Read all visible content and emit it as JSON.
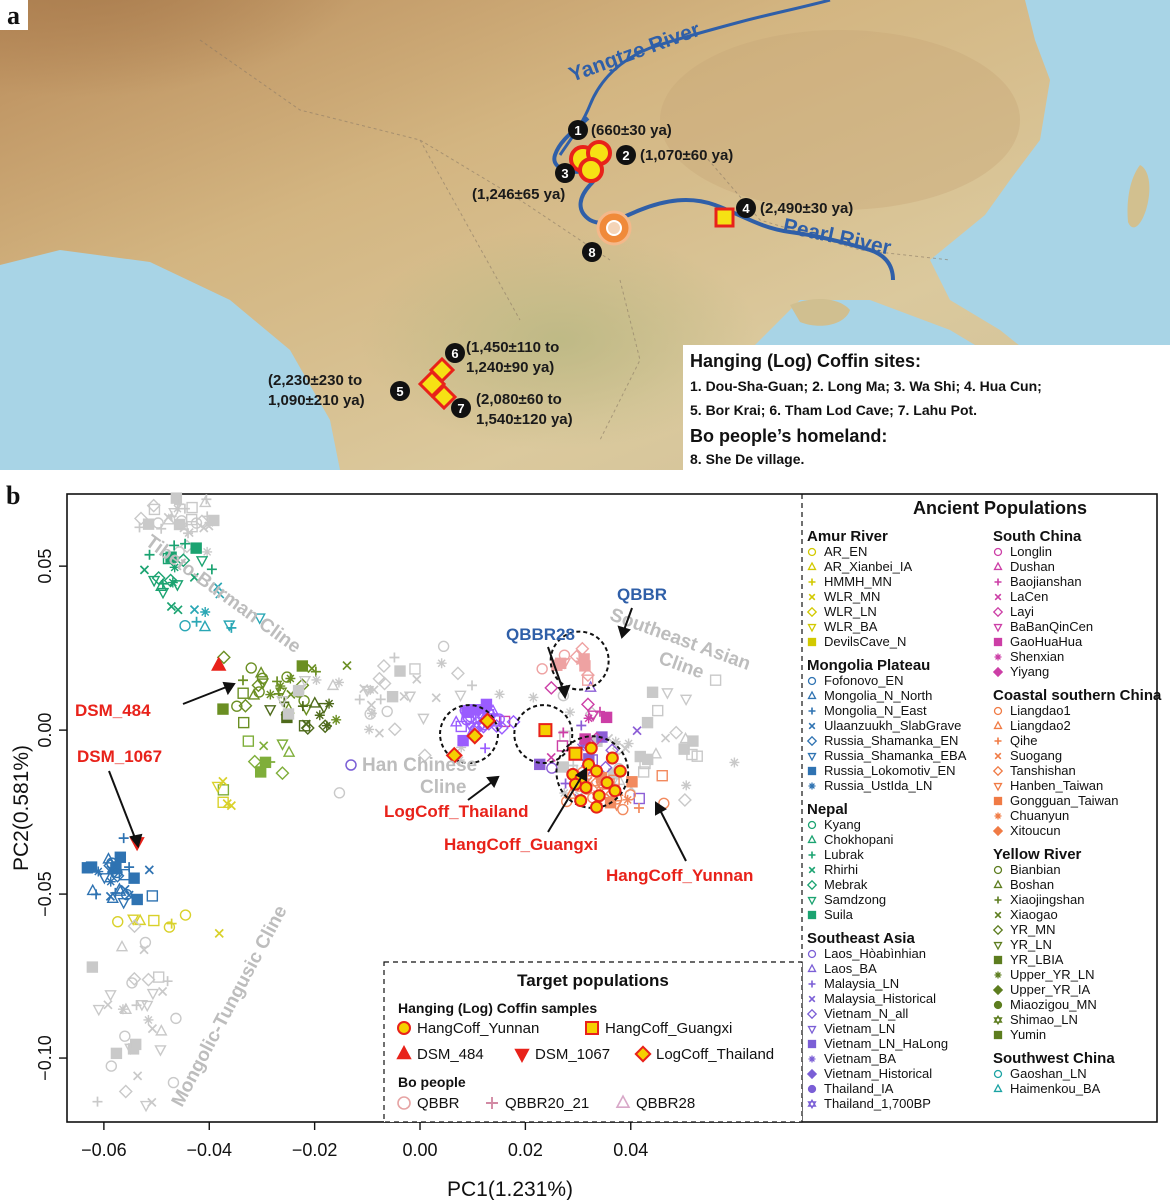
{
  "panel_a": {
    "label": "a",
    "rivers": {
      "yangtze": "Yangtze River",
      "pearl": "Pearl River"
    },
    "sites": [
      {
        "num": "1",
        "date": "(660±30 ya)"
      },
      {
        "num": "2",
        "date": "(1,070±60 ya)"
      },
      {
        "num": "3",
        "date": "(1,246±65 ya)"
      },
      {
        "num": "4",
        "date": "(2,490±30 ya)"
      },
      {
        "num": "5",
        "date_line1": "(2,230±230 to",
        "date_line2": "1,090±210 ya)"
      },
      {
        "num": "6",
        "date_line1": "(1,450±110 to",
        "date_line2": "1,240±90 ya)"
      },
      {
        "num": "7",
        "date_line1": "(2,080±60 to",
        "date_line2": "1,540±120 ya)"
      },
      {
        "num": "8"
      }
    ],
    "legend": {
      "title": "Hanging (Log) Coffin sites:",
      "line1": "1. Dou-Sha-Guan;  2. Long Ma;  3. Wa Shi;  4. Hua Cun;",
      "line2": "5. Bor Krai;  6. Tham Lod Cave;  7. Lahu Pot.",
      "bo_title": "Bo people’s homeland:",
      "bo_line": "8. She De village."
    }
  },
  "panel_b": {
    "label": "b",
    "chart_data": {
      "type": "scatter",
      "xlabel": "PC1(1.231%)",
      "ylabel": "PC2(0.581%)",
      "xlim": [
        -0.067,
        0.0725
      ],
      "ylim": [
        -0.1195,
        0.072
      ],
      "x_ticks": [
        "−0.06",
        "−0.04",
        "−0.02",
        "0.00",
        "0.02",
        "0.04"
      ],
      "x_tick_values": [
        -0.06,
        -0.04,
        -0.02,
        0.0,
        0.02,
        0.04
      ],
      "y_ticks": [
        "0.05",
        "0.00",
        "−0.05",
        "−0.10"
      ],
      "y_tick_values": [
        0.05,
        0.0,
        -0.05,
        -0.1
      ],
      "clines": [
        {
          "text": "Tibeto-Burman Cline",
          "x": -0.038,
          "y": 0.04
        },
        {
          "text": "Southeast Asian Cline",
          "x": 0.049,
          "y": 0.026
        },
        {
          "text": "Mongolic-Tungusic Cline",
          "x": -0.039,
          "y": -0.085
        }
      ],
      "han_cline": {
        "line1": "Han Chinese",
        "line2": "Cline"
      },
      "annotations": [
        {
          "text": "DSM_484",
          "x": -0.038,
          "y": 0.021
        },
        {
          "text": "DSM_1067",
          "x": -0.053,
          "y": -0.033
        },
        {
          "text": "QBBR",
          "x": 0.029,
          "y": 0.035
        },
        {
          "text": "QBBR28",
          "x": 0.012,
          "y": 0.023
        },
        {
          "text": "LogCoff_Thailand",
          "x": 0.007,
          "y": -0.007
        },
        {
          "text": "HangCoff_Guangxi",
          "x": 0.023,
          "y": -0.0015
        },
        {
          "text": "HangCoff_Yunnan",
          "x": 0.033,
          "y": -0.012
        }
      ],
      "series": [
        {
          "name": "HangCoff_Yunnan",
          "marker": "circle",
          "color": "#e8221a",
          "fill": "#f5d000",
          "x": [
            0.029,
            0.0305,
            0.0315,
            0.032,
            0.0335,
            0.034,
            0.0355,
            0.0365,
            0.0305,
            0.0325,
            0.038,
            0.037,
            0.0295,
            0.0335
          ],
          "y": [
            -0.0135,
            -0.015,
            -0.0175,
            -0.0105,
            -0.0125,
            -0.02,
            -0.016,
            -0.0085,
            -0.0215,
            -0.0055,
            -0.0125,
            -0.0185,
            -0.0165,
            -0.0235
          ]
        },
        {
          "name": "HangCoff_Guangxi",
          "marker": "square",
          "color": "#e8221a",
          "fill": "#f5d000",
          "x": [
            0.0238,
            0.0295
          ],
          "y": [
            0.0,
            -0.0072
          ]
        },
        {
          "name": "LogCoff_Thailand",
          "marker": "diamond",
          "color": "#e8221a",
          "fill": "#f5d000",
          "x": [
            0.0065,
            0.0104,
            0.0128
          ],
          "y": [
            -0.0077,
            -0.0018,
            0.0028
          ]
        },
        {
          "name": "DSM_484",
          "marker": "triangle-up",
          "color": "#e8221a",
          "x": [
            -0.0382
          ],
          "y": [
            0.0197
          ]
        },
        {
          "name": "DSM_1067",
          "marker": "triangle-down",
          "color": "#e8221a",
          "x": [
            -0.0537
          ],
          "y": [
            -0.0342
          ]
        }
      ],
      "highlight_circles": [
        {
          "x": 0.0303,
          "y": 0.0212,
          "r": 0.0055
        },
        {
          "x": 0.0093,
          "y": -0.0012,
          "r": 0.0055
        },
        {
          "x": 0.0234,
          "y": -0.0012,
          "r": 0.0055
        },
        {
          "x": 0.0327,
          "y": -0.0128,
          "r": 0.0068
        }
      ],
      "background_clusters": [
        {
          "role": "Tibeto-Burman light",
          "color": "#c9c9c9",
          "cx": -0.045,
          "cy": 0.065,
          "sx": 0.004,
          "sy": 0.006,
          "n": 40
        },
        {
          "role": "Nepal green",
          "color": "#1ba371",
          "cx": -0.047,
          "cy": 0.048,
          "sx": 0.003,
          "sy": 0.005,
          "n": 22
        },
        {
          "role": "Nepal teal",
          "color": "#2aa7b5",
          "cx": -0.041,
          "cy": 0.034,
          "sx": 0.004,
          "sy": 0.005,
          "n": 10
        },
        {
          "role": "Yellow River olive",
          "color": "#6b8f23",
          "cx": -0.028,
          "cy": 0.012,
          "sx": 0.006,
          "sy": 0.004,
          "n": 32
        },
        {
          "role": "Yellow River dark",
          "color": "#4e6a1b",
          "cx": -0.02,
          "cy": 0.005,
          "sx": 0.005,
          "sy": 0.004,
          "n": 14
        },
        {
          "role": "Mongolia blue",
          "color": "#2f73b2",
          "cx": -0.058,
          "cy": -0.044,
          "sx": 0.0025,
          "sy": 0.006,
          "n": 34
        },
        {
          "role": "Amur yellow",
          "color": "#d9d12a",
          "cx": -0.049,
          "cy": -0.058,
          "sx": 0.004,
          "sy": 0.002,
          "n": 8
        },
        {
          "role": "Mongolic light",
          "color": "#c9c9c9",
          "cx": -0.055,
          "cy": -0.085,
          "sx": 0.005,
          "sy": 0.014,
          "n": 38
        },
        {
          "role": "Han light",
          "color": "#c9c9c9",
          "cx": -0.005,
          "cy": 0.008,
          "sx": 0.01,
          "sy": 0.008,
          "n": 44
        },
        {
          "role": "Southeast light",
          "color": "#c9c9c9",
          "cx": 0.042,
          "cy": -0.008,
          "sx": 0.008,
          "sy": 0.01,
          "n": 44
        },
        {
          "role": "Southeast purple",
          "color": "#8c5ed6",
          "cx": 0.035,
          "cy": -0.01,
          "sx": 0.006,
          "sy": 0.007,
          "n": 20
        },
        {
          "role": "Coastal orange",
          "color": "#f28a5e",
          "cx": 0.034,
          "cy": -0.02,
          "sx": 0.004,
          "sy": 0.004,
          "n": 36
        },
        {
          "role": "Southeast magenta",
          "color": "#cc3ea6",
          "cx": 0.028,
          "cy": 0.001,
          "sx": 0.005,
          "sy": 0.005,
          "n": 12
        },
        {
          "role": "QBBR pink",
          "color": "#eea2a2",
          "cx": 0.0303,
          "cy": 0.0212,
          "sx": 0.0028,
          "sy": 0.0028,
          "n": 12
        },
        {
          "role": "QBBR28 violet",
          "color": "#9a5cff",
          "cx": 0.012,
          "cy": 0.003,
          "sx": 0.0023,
          "sy": 0.003,
          "n": 36
        },
        {
          "role": "Yellow River mid",
          "color": "#7fae3a",
          "cx": -0.032,
          "cy": -0.01,
          "sx": 0.004,
          "sy": 0.004,
          "n": 10
        },
        {
          "role": "Amur scattered",
          "color": "#d9d12a",
          "cx": -0.038,
          "cy": -0.022,
          "sx": 0.002,
          "sy": 0.004,
          "n": 5
        }
      ]
    },
    "legend_ancient": {
      "title": "Ancient Populations",
      "col1": [
        {
          "header": "Amur River",
          "color": "#b9b300",
          "items": [
            {
              "label": "AR_EN",
              "marker": "circle",
              "color": "#d2c900"
            },
            {
              "label": "AR_Xianbei_IA",
              "marker": "triangle",
              "color": "#d2c900"
            },
            {
              "label": "HMMH_MN",
              "marker": "plus",
              "color": "#d2c900"
            },
            {
              "label": "WLR_MN",
              "marker": "x",
              "color": "#d2c900"
            },
            {
              "label": "WLR_LN",
              "marker": "diamond",
              "color": "#d2c900"
            },
            {
              "label": "WLR_BA",
              "marker": "tridown",
              "color": "#d2c900"
            },
            {
              "label": "DevilsCave_N",
              "marker": "square",
              "color": "#d2c900"
            }
          ]
        },
        {
          "header": "Mongolia Plateau",
          "color": "#2f73b2",
          "items": [
            {
              "label": "Fofonovo_EN",
              "marker": "circle",
              "color": "#2f73b2"
            },
            {
              "label": "Mongolia_N_North",
              "marker": "triangle",
              "color": "#2f73b2"
            },
            {
              "label": "Mongolia_N_East",
              "marker": "plus",
              "color": "#2f73b2"
            },
            {
              "label": "Ulaanzuukh_SlabGrave",
              "marker": "x",
              "color": "#2f73b2"
            },
            {
              "label": "Russia_Shamanka_EN",
              "marker": "diamond",
              "color": "#2f73b2"
            },
            {
              "label": "Russia_Shamanka_EBA",
              "marker": "tridown",
              "color": "#2f73b2"
            },
            {
              "label": "Russia_Lokomotiv_EN",
              "marker": "square",
              "color": "#2f73b2"
            },
            {
              "label": "Russia_UstIda_LN",
              "marker": "star",
              "color": "#2f73b2"
            }
          ]
        },
        {
          "header": "Nepal",
          "color": "#1ba371",
          "items": [
            {
              "label": "Kyang",
              "marker": "circle",
              "color": "#1ba371"
            },
            {
              "label": "Chokhopani",
              "marker": "triangle",
              "color": "#1ba371"
            },
            {
              "label": "Lubrak",
              "marker": "plus",
              "color": "#1ba371"
            },
            {
              "label": "Rhirhi",
              "marker": "x",
              "color": "#1ba371"
            },
            {
              "label": "Mebrak",
              "marker": "diamond",
              "color": "#1ba371"
            },
            {
              "label": "Samdzong",
              "marker": "tridown",
              "color": "#1ba371"
            },
            {
              "label": "Suila",
              "marker": "square",
              "color": "#1ba371"
            }
          ]
        },
        {
          "header": "Southeast Asia",
          "color": "#7b5fd6",
          "items": [
            {
              "label": "Laos_Hòabìnhian",
              "marker": "circle",
              "color": "#7b5fd6"
            },
            {
              "label": "Laos_BA",
              "marker": "triangle",
              "color": "#7b5fd6"
            },
            {
              "label": "Malaysia_LN",
              "marker": "plus",
              "color": "#7b5fd6"
            },
            {
              "label": "Malaysia_Historical",
              "marker": "x",
              "color": "#7b5fd6"
            },
            {
              "label": "Vietnam_N_all",
              "marker": "diamond",
              "color": "#7b5fd6"
            },
            {
              "label": "Vietnam_LN",
              "marker": "tridown",
              "color": "#7b5fd6"
            },
            {
              "label": "Vietnam_LN_HaLong",
              "marker": "square",
              "color": "#7b5fd6"
            },
            {
              "label": "Vietnam_BA",
              "marker": "star",
              "color": "#7b5fd6"
            },
            {
              "label": "Vietnam_Historical",
              "marker": "diamondfill",
              "color": "#7b5fd6"
            },
            {
              "label": "Thailand_IA",
              "marker": "circlefill",
              "color": "#7b5fd6"
            },
            {
              "label": "Thailand_1,700BP",
              "marker": "hex",
              "color": "#7b5fd6"
            }
          ]
        }
      ],
      "col2": [
        {
          "header": "South China",
          "color": "#cc3ea6",
          "items": [
            {
              "label": "Longlin",
              "marker": "circle",
              "color": "#cc3ea6"
            },
            {
              "label": "Dushan",
              "marker": "triangle",
              "color": "#cc3ea6"
            },
            {
              "label": "Baojianshan",
              "marker": "plus",
              "color": "#cc3ea6"
            },
            {
              "label": "LaCen",
              "marker": "x",
              "color": "#cc3ea6"
            },
            {
              "label": "Layi",
              "marker": "diamond",
              "color": "#cc3ea6"
            },
            {
              "label": "BaBanQinCen",
              "marker": "tridown",
              "color": "#cc3ea6"
            },
            {
              "label": "GaoHuaHua",
              "marker": "square",
              "color": "#cc3ea6"
            },
            {
              "label": "Shenxian",
              "marker": "star",
              "color": "#cc3ea6"
            },
            {
              "label": "Yiyang",
              "marker": "diamondfill",
              "color": "#cc3ea6"
            }
          ]
        },
        {
          "header": "Coastal southern China",
          "color": "#f07b45",
          "items": [
            {
              "label": "Liangdao1",
              "marker": "circle",
              "color": "#f07b45"
            },
            {
              "label": "Liangdao2",
              "marker": "triangle",
              "color": "#f07b45"
            },
            {
              "label": "Qihe",
              "marker": "plus",
              "color": "#f07b45"
            },
            {
              "label": "Suogang",
              "marker": "x",
              "color": "#f07b45"
            },
            {
              "label": "Tanshishan",
              "marker": "diamond",
              "color": "#f07b45"
            },
            {
              "label": "Hanben_Taiwan",
              "marker": "tridown",
              "color": "#f07b45"
            },
            {
              "label": "Gongguan_Taiwan",
              "marker": "square",
              "color": "#f07b45"
            },
            {
              "label": "Chuanyun",
              "marker": "star",
              "color": "#f07b45"
            },
            {
              "label": "Xitoucun",
              "marker": "diamondfill",
              "color": "#f07b45"
            }
          ]
        },
        {
          "header": "Yellow River",
          "color": "#4e6a1b",
          "items": [
            {
              "label": "Bianbian",
              "marker": "circle",
              "color": "#5d7d1f"
            },
            {
              "label": "Boshan",
              "marker": "triangle",
              "color": "#5d7d1f"
            },
            {
              "label": "Xiaojingshan",
              "marker": "plus",
              "color": "#5d7d1f"
            },
            {
              "label": "Xiaogao",
              "marker": "x",
              "color": "#5d7d1f"
            },
            {
              "label": "YR_MN",
              "marker": "diamond",
              "color": "#5d7d1f"
            },
            {
              "label": "YR_LN",
              "marker": "tridown",
              "color": "#5d7d1f"
            },
            {
              "label": "YR_LBIA",
              "marker": "square",
              "color": "#5d7d1f"
            },
            {
              "label": "Upper_YR_LN",
              "marker": "star",
              "color": "#5d7d1f"
            },
            {
              "label": "Upper_YR_IA",
              "marker": "diamondfill",
              "color": "#5d7d1f"
            },
            {
              "label": "Miaozigou_MN",
              "marker": "circlefill",
              "color": "#5d7d1f"
            },
            {
              "label": "Shimao_LN",
              "marker": "hex",
              "color": "#5d7d1f"
            },
            {
              "label": "Yumin",
              "marker": "square",
              "color": "#5d7d1f"
            }
          ]
        },
        {
          "header": "Southwest China",
          "color": "#1ba3a3",
          "items": [
            {
              "label": "Gaoshan_LN",
              "marker": "circle",
              "color": "#1ba3a3"
            },
            {
              "label": "Haimenkou_BA",
              "marker": "triangle",
              "color": "#1ba3a3"
            }
          ]
        }
      ]
    },
    "legend_target": {
      "title": "Target populations",
      "hanging_title": "Hanging (Log) Coffin samples",
      "items": [
        {
          "label": "HangCoff_Yunnan",
          "marker": "circle",
          "color": "#e8221a",
          "fill": "#f5d000"
        },
        {
          "label": "HangCoff_Guangxi",
          "marker": "square",
          "color": "#e8221a",
          "fill": "#f5d000"
        },
        {
          "label": "DSM_484",
          "marker": "triangle-up",
          "color": "#e8221a",
          "fill": "#e8221a"
        },
        {
          "label": "DSM_1067",
          "marker": "triangle-down",
          "color": "#e8221a",
          "fill": "#e8221a"
        },
        {
          "label": "LogCoff_Thailand",
          "marker": "diamond",
          "color": "#e8221a",
          "fill": "#f5d000"
        }
      ],
      "bo_title": "Bo people",
      "bo_items": [
        {
          "label": "QBBR",
          "marker": "circle",
          "color": "#e6a4a4"
        },
        {
          "label": "QBBR20_21",
          "marker": "plus",
          "color": "#d28aa4"
        },
        {
          "label": "QBBR28",
          "marker": "triangle",
          "color": "#d8a8c8"
        }
      ]
    }
  }
}
